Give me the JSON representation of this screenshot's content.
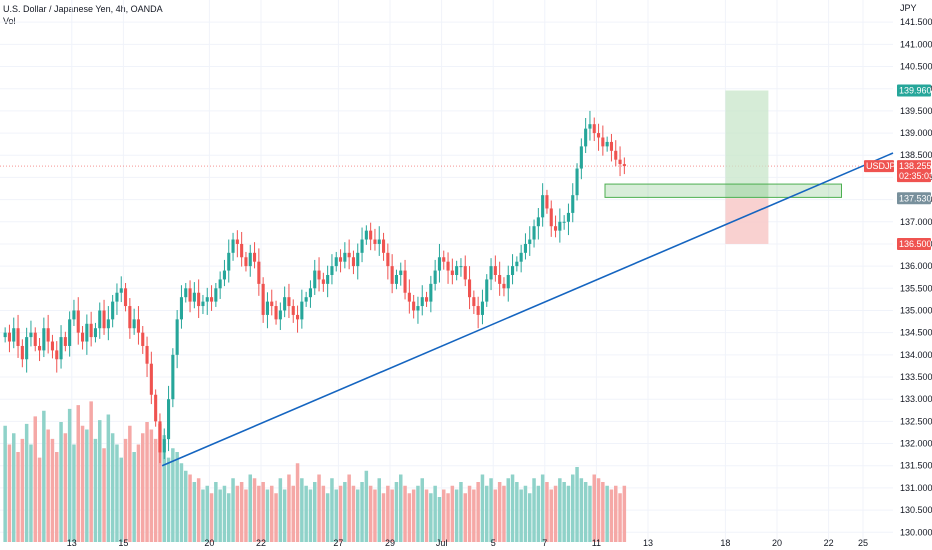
{
  "header": {
    "title": "U.S. Dollar / Japanese Yen, 4h, OANDA",
    "volume_label": "Vol"
  },
  "currency": "JPY",
  "colors": {
    "up": "#26a69a",
    "down": "#ef5350",
    "vol_up": "#8fd2c9",
    "vol_down": "#f5a8a6",
    "trendline": "#1565c0",
    "zone": "#4caf50",
    "profit": "#c8e6c9",
    "loss": "#f8c9c8"
  },
  "price_tags": [
    {
      "label": "139.960",
      "color": "#26a69a",
      "price": 139.96
    },
    {
      "label": "USDJPY",
      "color": "#ef5350",
      "price": 138.255
    },
    {
      "label": "138.255",
      "color": "#ef5350",
      "price": 138.255
    },
    {
      "label": "02:35:03",
      "color": "#ef5350",
      "price": 138.255
    },
    {
      "label": "137.530",
      "color": "#78909c",
      "price": 137.53
    },
    {
      "label": "136.500",
      "color": "#ef5350",
      "price": 136.5
    }
  ],
  "chart_data": {
    "type": "candlestick",
    "symbol": "USDJPY",
    "interval": "4h",
    "ylim": [
      129.6,
      142.0
    ],
    "y_ticks": [
      "141.500",
      "141.000",
      "140.500",
      "140.000",
      "139.500",
      "139.000",
      "138.500",
      "138.000",
      "137.500",
      "137.000",
      "136.500",
      "136.000",
      "135.500",
      "135.000",
      "134.500",
      "134.000",
      "133.500",
      "133.000",
      "132.500",
      "132.000",
      "131.500",
      "131.000",
      "130.500",
      "130.000"
    ],
    "x_ticks": [
      {
        "label": "13",
        "bar": 16
      },
      {
        "label": "15",
        "bar": 28
      },
      {
        "label": "20",
        "bar": 48
      },
      {
        "label": "22",
        "bar": 60
      },
      {
        "label": "27",
        "bar": 78
      },
      {
        "label": "29",
        "bar": 90
      },
      {
        "label": "Jul",
        "bar": 102
      },
      {
        "label": "5",
        "bar": 114
      },
      {
        "label": "7",
        "bar": 126
      },
      {
        "label": "11",
        "bar": 138
      },
      {
        "label": "13",
        "bar": 150
      },
      {
        "label": "18",
        "bar": 168
      },
      {
        "label": "20",
        "bar": 180
      },
      {
        "label": "22",
        "bar": 192
      },
      {
        "label": "25",
        "bar": 200
      }
    ],
    "closes": [
      134.5,
      134.3,
      134.6,
      134.2,
      133.9,
      134.4,
      134.5,
      134.2,
      134.1,
      134.6,
      134.3,
      134.1,
      133.9,
      134.4,
      134.2,
      134.8,
      135.0,
      134.5,
      134.3,
      134.7,
      134.4,
      134.6,
      135.0,
      134.6,
      134.8,
      135.2,
      135.4,
      135.5,
      135.1,
      134.6,
      134.8,
      134.5,
      134.2,
      133.8,
      133.1,
      132.5,
      131.8,
      132.1,
      133.0,
      134.0,
      134.8,
      135.3,
      135.5,
      135.2,
      135.4,
      135.1,
      135.2,
      135.3,
      135.2,
      135.5,
      135.7,
      135.9,
      136.3,
      136.6,
      136.5,
      136.2,
      136.0,
      136.3,
      136.1,
      135.6,
      134.9,
      135.2,
      135.1,
      134.8,
      135.0,
      135.3,
      135.1,
      134.9,
      134.8,
      135.2,
      135.3,
      135.5,
      135.9,
      135.7,
      135.6,
      135.8,
      136.0,
      136.2,
      136.1,
      136.3,
      136.2,
      136.0,
      136.3,
      136.6,
      136.8,
      136.6,
      136.5,
      136.6,
      136.3,
      136.0,
      135.6,
      135.8,
      135.9,
      135.4,
      135.2,
      135.0,
      135.1,
      135.3,
      135.2,
      135.6,
      135.9,
      136.2,
      136.1,
      135.9,
      135.8,
      136.0,
      136.0,
      135.7,
      135.3,
      135.1,
      134.9,
      135.2,
      135.7,
      136.0,
      135.8,
      135.6,
      135.5,
      135.8,
      136.0,
      136.1,
      136.3,
      136.5,
      136.6,
      136.9,
      137.1,
      137.6,
      137.3,
      136.9,
      136.8,
      137.0,
      137.0,
      137.2,
      137.6,
      138.2,
      138.7,
      139.1,
      139.2,
      139.0,
      138.9,
      138.7,
      138.8,
      138.6,
      138.4,
      138.3,
      138.255
    ],
    "volumes": [
      0.62,
      0.52,
      0.58,
      0.48,
      0.55,
      0.63,
      0.52,
      0.67,
      0.45,
      0.7,
      0.6,
      0.55,
      0.48,
      0.64,
      0.58,
      0.71,
      0.52,
      0.73,
      0.62,
      0.6,
      0.75,
      0.55,
      0.65,
      0.5,
      0.68,
      0.58,
      0.52,
      0.45,
      0.55,
      0.62,
      0.48,
      0.52,
      0.58,
      0.64,
      0.6,
      0.55,
      0.63,
      0.57,
      0.45,
      0.5,
      0.48,
      0.42,
      0.38,
      0.36,
      0.32,
      0.34,
      0.28,
      0.3,
      0.26,
      0.32,
      0.28,
      0.3,
      0.26,
      0.34,
      0.3,
      0.32,
      0.28,
      0.36,
      0.34,
      0.3,
      0.32,
      0.28,
      0.3,
      0.26,
      0.34,
      0.28,
      0.36,
      0.3,
      0.42,
      0.34,
      0.3,
      0.28,
      0.32,
      0.36,
      0.3,
      0.26,
      0.34,
      0.28,
      0.3,
      0.32,
      0.36,
      0.3,
      0.28,
      0.32,
      0.38,
      0.3,
      0.28,
      0.34,
      0.26,
      0.3,
      0.28,
      0.32,
      0.36,
      0.3,
      0.26,
      0.28,
      0.3,
      0.34,
      0.28,
      0.26,
      0.3,
      0.24,
      0.28,
      0.26,
      0.3,
      0.28,
      0.32,
      0.26,
      0.3,
      0.28,
      0.32,
      0.36,
      0.3,
      0.34,
      0.28,
      0.32,
      0.3,
      0.34,
      0.36,
      0.32,
      0.28,
      0.3,
      0.26,
      0.34,
      0.3,
      0.36,
      0.32,
      0.28,
      0.3,
      0.34,
      0.32,
      0.3,
      0.36,
      0.4,
      0.34,
      0.32,
      0.3,
      0.36,
      0.34,
      0.32,
      0.3,
      0.28,
      0.3,
      0.26,
      0.3
    ]
  }
}
